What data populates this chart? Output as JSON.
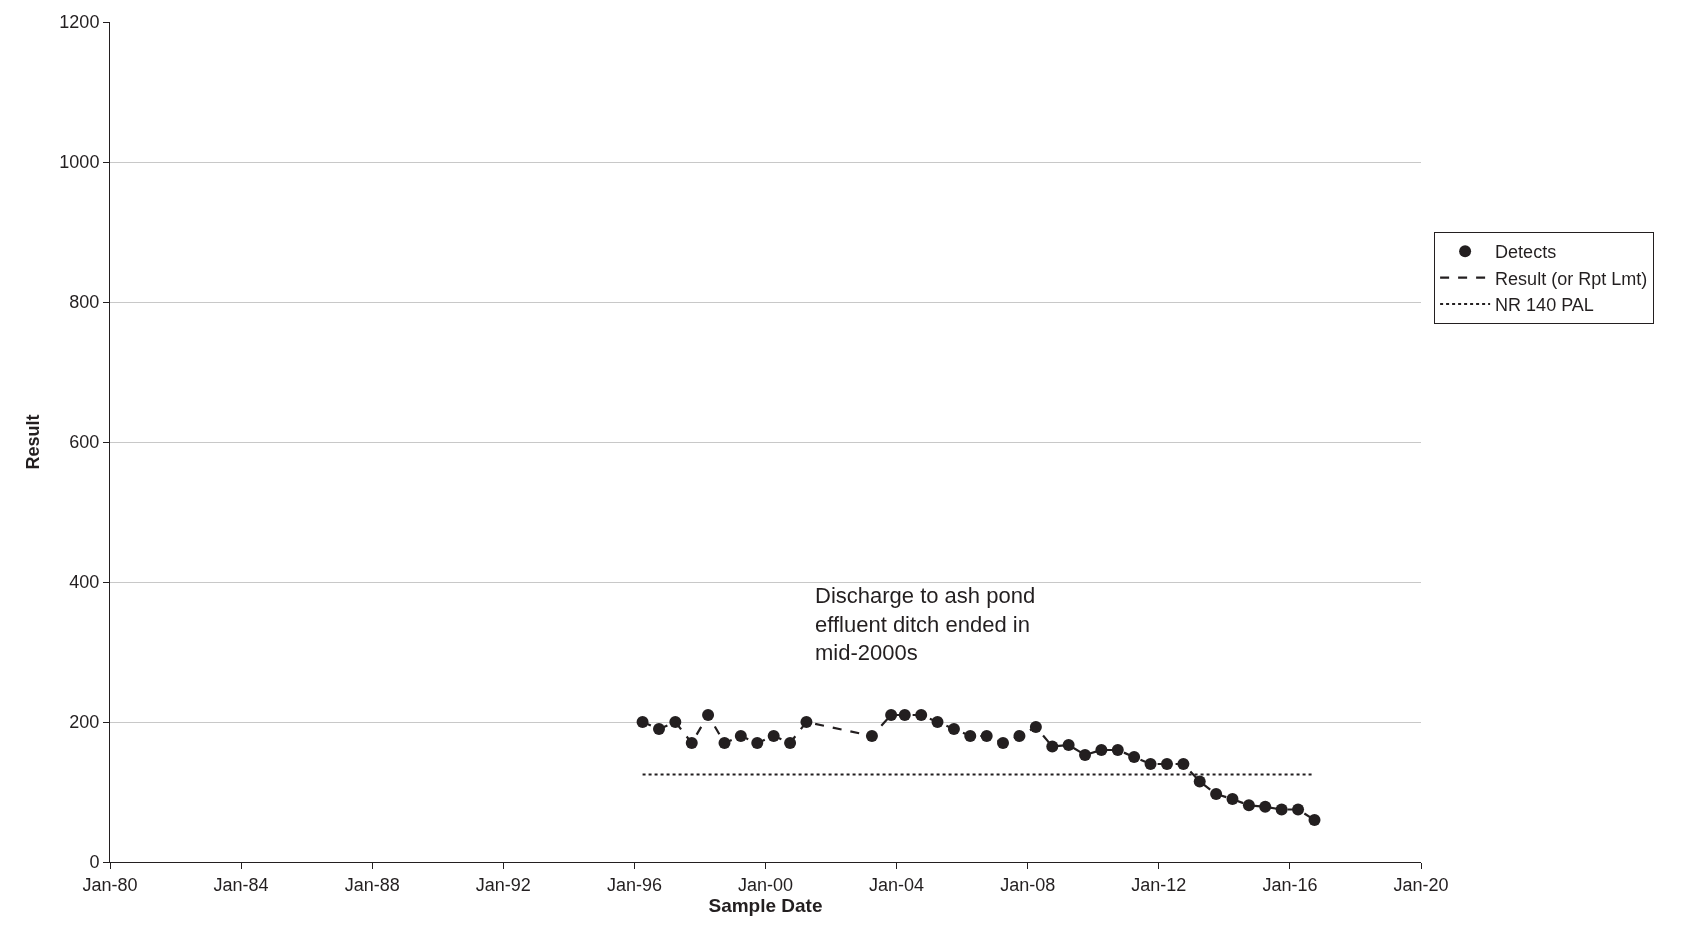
{
  "chart_data": {
    "type": "scatter",
    "xlabel": "Sample Date",
    "ylabel": "Result",
    "x": [
      "1996-04",
      "1996-10",
      "1997-04",
      "1997-10",
      "1998-04",
      "1998-10",
      "1999-04",
      "1999-10",
      "2000-04",
      "2000-10",
      "2001-04",
      "2003-04",
      "2003-11",
      "2004-04",
      "2004-10",
      "2005-04",
      "2005-10",
      "2006-04",
      "2006-10",
      "2007-04",
      "2007-10",
      "2008-04",
      "2008-10",
      "2009-04",
      "2009-10",
      "2010-04",
      "2010-10",
      "2011-04",
      "2011-10",
      "2012-04",
      "2012-10",
      "2013-04",
      "2013-10",
      "2014-04",
      "2014-10",
      "2015-04",
      "2015-10",
      "2016-04",
      "2016-10"
    ],
    "series": [
      {
        "name": "Detects",
        "marker": "circle",
        "color": "#231f20",
        "values": [
          200,
          190,
          200,
          170,
          210,
          170,
          180,
          170,
          180,
          170,
          200,
          180,
          210,
          210,
          210,
          200,
          190,
          180,
          180,
          170,
          180,
          193,
          165,
          167,
          153,
          160,
          160,
          150,
          140,
          140,
          140,
          115,
          97,
          90,
          81,
          79,
          75,
          75,
          60
        ]
      },
      {
        "name": "Result (or Rpt Lmt)",
        "type": "line",
        "line_style": "dashed",
        "color": "#231f20",
        "values": [
          200,
          190,
          200,
          170,
          210,
          170,
          180,
          170,
          180,
          170,
          200,
          180,
          210,
          210,
          210,
          200,
          190,
          180,
          180,
          170,
          180,
          193,
          165,
          167,
          153,
          160,
          160,
          150,
          140,
          140,
          140,
          115,
          97,
          90,
          81,
          79,
          75,
          75,
          60
        ]
      },
      {
        "name": "NR 140 PAL",
        "type": "line",
        "line_style": "dotted",
        "color": "#231f20",
        "x": [
          "1996-04",
          "2016-10"
        ],
        "values": [
          125,
          125
        ]
      }
    ],
    "annotations": [
      "Discharge to ash pond\neffluent ditch ended in\nmid-2000s"
    ],
    "xlim": [
      "1980-01",
      "2020-01"
    ],
    "xticks": [
      {
        "value": "1980-01",
        "label": "Jan-80"
      },
      {
        "value": "1984-01",
        "label": "Jan-84"
      },
      {
        "value": "1988-01",
        "label": "Jan-88"
      },
      {
        "value": "1992-01",
        "label": "Jan-92"
      },
      {
        "value": "1996-01",
        "label": "Jan-96"
      },
      {
        "value": "2000-01",
        "label": "Jan-00"
      },
      {
        "value": "2004-01",
        "label": "Jan-04"
      },
      {
        "value": "2008-01",
        "label": "Jan-08"
      },
      {
        "value": "2012-01",
        "label": "Jan-12"
      },
      {
        "value": "2016-01",
        "label": "Jan-16"
      },
      {
        "value": "2020-01",
        "label": "Jan-20"
      }
    ],
    "ylim": [
      0,
      1200
    ],
    "yticks": [
      0,
      200,
      400,
      600,
      800,
      1000,
      1200
    ],
    "grid": "y",
    "legend": "right"
  }
}
